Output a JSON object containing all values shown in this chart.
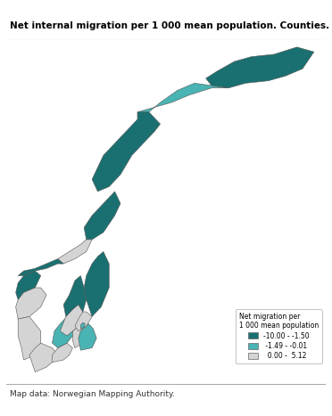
{
  "title": "Net internal migration per 1 000 mean population. Counties. 2005",
  "source": "Map data: Norwegian Mapping Authority.",
  "legend_title": "Net migration per\n1 000 mean population",
  "legend_items": [
    {
      "label": "-10.00 - -1.50",
      "color": "#1a7070"
    },
    {
      "label": " -1.49 - -0.01",
      "color": "#4ab3b3"
    },
    {
      "label": "  0.00 -  5.12",
      "color": "#d4d4d4"
    }
  ],
  "colors": {
    "dark_teal": "#1a7070",
    "light_teal": "#4ab3b3",
    "light_gray": "#d4d4d4",
    "border": "#555555",
    "background": "#ffffff"
  },
  "county_categories": {
    "Finnmark": 0,
    "Troms": 1,
    "Nordland": 0,
    "Nord-Trondelag": 0,
    "Sor-Trondelag": 2,
    "More og Romsdal": 0,
    "Sogn og Fjordane": 0,
    "Hordaland": 2,
    "Rogaland": 2,
    "Vest-Agder": 2,
    "Aust-Agder": 2,
    "Telemark": 1,
    "Vestfold": 2,
    "Buskerud": 2,
    "Hedmark": 0,
    "Oppland": 0,
    "Akershus": 2,
    "Oslo": 1,
    "Ostfold": 1
  },
  "lon_min": 4.0,
  "lon_max": 32.0,
  "lat_min": 57.5,
  "lat_max": 71.8,
  "title_fontsize": 7.5,
  "source_fontsize": 6.5
}
